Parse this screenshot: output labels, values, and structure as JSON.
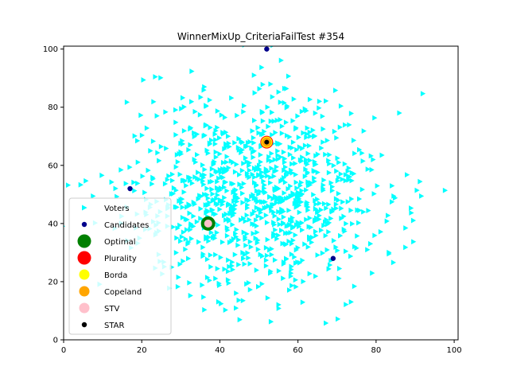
{
  "chart_data": {
    "type": "scatter",
    "title": "WinnerMixUp_CriteriaFailTest #354",
    "xlabel": "",
    "ylabel": "",
    "xlim": [
      0,
      101
    ],
    "ylim": [
      0,
      101
    ],
    "xticks": [
      0,
      20,
      40,
      60,
      80,
      100
    ],
    "yticks": [
      0,
      20,
      40,
      60,
      80,
      100
    ],
    "grid": false,
    "legend_position": "lower-left",
    "voters": {
      "name": "Voters",
      "color": "#00ffff",
      "marker": "triangle-right",
      "count": 1000,
      "distribution": {
        "center": [
          50,
          50
        ],
        "spread": 16,
        "seed": 354
      }
    },
    "candidates": {
      "name": "Candidates",
      "color": "#00008b",
      "points": [
        {
          "x": 52,
          "y": 100
        },
        {
          "x": 17,
          "y": 52
        },
        {
          "x": 69,
          "y": 28
        },
        {
          "x": 52,
          "y": 68
        },
        {
          "x": 37,
          "y": 40
        }
      ]
    },
    "winners": [
      {
        "name": "Optimal",
        "color": "#008000",
        "x": 37,
        "y": 40,
        "size": 9
      },
      {
        "name": "Plurality",
        "color": "#ff0000",
        "x": 52,
        "y": 68,
        "size": 8
      },
      {
        "name": "Borda",
        "color": "#ffff00",
        "x": 52,
        "y": 68,
        "size": 7
      },
      {
        "name": "Copeland",
        "color": "#ffa500",
        "x": 52,
        "y": 68,
        "size": 6
      },
      {
        "name": "STV",
        "color": "#ffc0cb",
        "x": 37,
        "y": 40,
        "size": 5
      },
      {
        "name": "STAR",
        "color": "#000000",
        "x": 52,
        "y": 68,
        "size": 3
      }
    ],
    "legend": [
      {
        "label": "Voters",
        "color": "#00ffff",
        "marker": "triangle-right"
      },
      {
        "label": "Candidates",
        "color": "#00008b",
        "marker": "dot"
      },
      {
        "label": "Optimal",
        "color": "#008000",
        "marker": "circle-lg"
      },
      {
        "label": "Plurality",
        "color": "#ff0000",
        "marker": "circle-lg"
      },
      {
        "label": "Borda",
        "color": "#ffff00",
        "marker": "circle-md"
      },
      {
        "label": "Copeland",
        "color": "#ffa500",
        "marker": "circle-md"
      },
      {
        "label": "STV",
        "color": "#ffc0cb",
        "marker": "circle-md"
      },
      {
        "label": "STAR",
        "color": "#000000",
        "marker": "dot"
      }
    ]
  }
}
